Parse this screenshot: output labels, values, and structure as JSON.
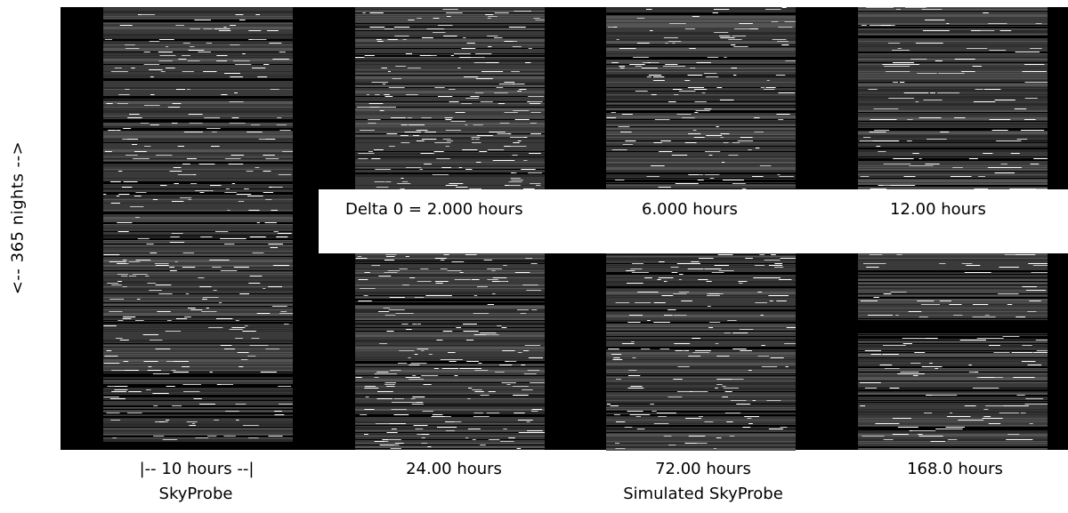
{
  "y_axis_label": "<-- 365 nights -->",
  "delta_labels": [
    "Delta 0 = 2.000 hours",
    "6.000 hours",
    "12.00 hours"
  ],
  "panel_labels": [
    "|--   10 hours   --|",
    "24.00 hours",
    "72.00 hours",
    "168.0 hours"
  ],
  "group_labels": [
    "SkyProbe",
    "Simulated SkyProbe"
  ],
  "panels": [
    {
      "id": "skyprobe-10h",
      "kind": "observed",
      "streak_density": 0.55
    },
    {
      "id": "sim-24h",
      "kind": "simulated",
      "streak_density": 0.75
    },
    {
      "id": "sim-72h",
      "kind": "simulated",
      "streak_density": 0.6
    },
    {
      "id": "sim-168h",
      "kind": "simulated",
      "streak_density": 0.45
    }
  ]
}
